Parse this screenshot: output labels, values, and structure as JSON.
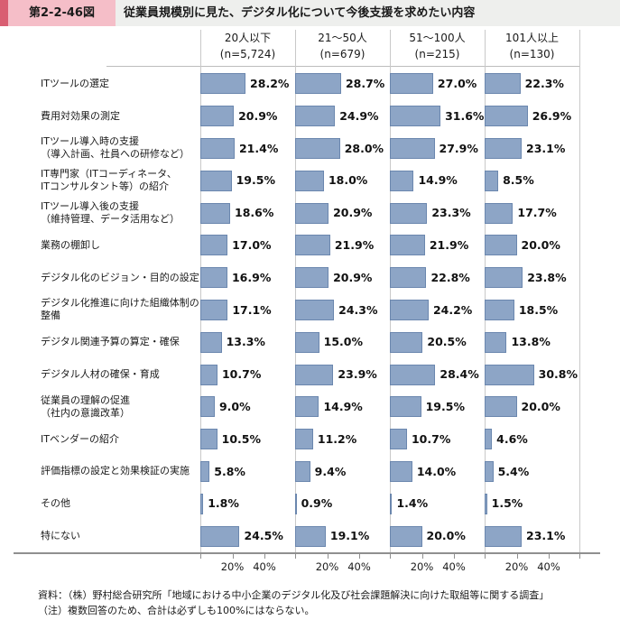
{
  "header": {
    "figure_label": "第2-2-46図",
    "title": "従業員規模別に見た、デジタル化について今後支援を求めたい内容"
  },
  "colors": {
    "accent": "#d95e72",
    "figure_label_bg": "#f5bec8",
    "header_strip_bg": "#eeefed",
    "bar_fill": "#8da5c6",
    "bar_border": "#6b87ae"
  },
  "chart_data": {
    "type": "bar",
    "orientation": "horizontal",
    "unit": "%",
    "xlim": [
      0,
      57
    ],
    "xticks": [
      "20%",
      "40%"
    ],
    "xtick_values": [
      20,
      40
    ],
    "grid": false,
    "groups": [
      {
        "label": "20人以下",
        "n_label": "(n=5,724)"
      },
      {
        "label": "21～50人",
        "n_label": "(n=679)"
      },
      {
        "label": "51～100人",
        "n_label": "(n=215)"
      },
      {
        "label": "101人以上",
        "n_label": "(n=130)"
      }
    ],
    "categories": [
      {
        "lines": [
          "ITツールの選定"
        ]
      },
      {
        "lines": [
          "費用対効果の測定"
        ]
      },
      {
        "lines": [
          "ITツール導入時の支援",
          "（導入計画、社員への研修など）"
        ]
      },
      {
        "lines": [
          "IT専門家（ITコーディネータ、",
          "ITコンサルタント等）の紹介"
        ]
      },
      {
        "lines": [
          "ITツール導入後の支援",
          "（維持管理、データ活用など）"
        ]
      },
      {
        "lines": [
          "業務の棚卸し"
        ]
      },
      {
        "lines": [
          "デジタル化のビジョン・目的の設定"
        ]
      },
      {
        "lines": [
          "デジタル化推進に向けた組織体制の",
          "整備"
        ]
      },
      {
        "lines": [
          "デジタル関連予算の算定・確保"
        ]
      },
      {
        "lines": [
          "デジタル人材の確保・育成"
        ]
      },
      {
        "lines": [
          "従業員の理解の促進",
          "（社内の意識改革）"
        ]
      },
      {
        "lines": [
          "ITベンダーの紹介"
        ]
      },
      {
        "lines": [
          "評価指標の設定と効果検証の実施"
        ]
      },
      {
        "lines": [
          "その他"
        ]
      },
      {
        "lines": [
          "特にない"
        ]
      }
    ],
    "series": [
      {
        "name": "20人以下 (n=5,724)",
        "values": [
          28.2,
          20.9,
          21.4,
          19.5,
          18.6,
          17.0,
          16.9,
          17.1,
          13.3,
          10.7,
          9.0,
          10.5,
          5.8,
          1.8,
          24.5
        ]
      },
      {
        "name": "21～50人 (n=679)",
        "values": [
          28.7,
          24.9,
          28.0,
          18.0,
          20.9,
          21.9,
          20.9,
          24.3,
          15.0,
          23.9,
          14.9,
          11.2,
          9.4,
          0.9,
          19.1
        ]
      },
      {
        "name": "51～100人 (n=215)",
        "values": [
          27.0,
          31.6,
          27.9,
          14.9,
          23.3,
          21.9,
          22.8,
          24.2,
          20.5,
          28.4,
          19.5,
          10.7,
          14.0,
          1.4,
          20.0
        ]
      },
      {
        "name": "101人以上 (n=130)",
        "values": [
          22.3,
          26.9,
          23.1,
          8.5,
          17.7,
          20.0,
          23.8,
          18.5,
          13.8,
          30.8,
          20.0,
          4.6,
          5.4,
          1.5,
          23.1
        ]
      }
    ]
  },
  "footer": {
    "source": "資料：（株）野村総合研究所「地域における中小企業のデジタル化及び社会課題解決に向けた取組等に関する調査」",
    "note": "（注）複数回答のため、合計は必ずしも100%にはならない。"
  }
}
